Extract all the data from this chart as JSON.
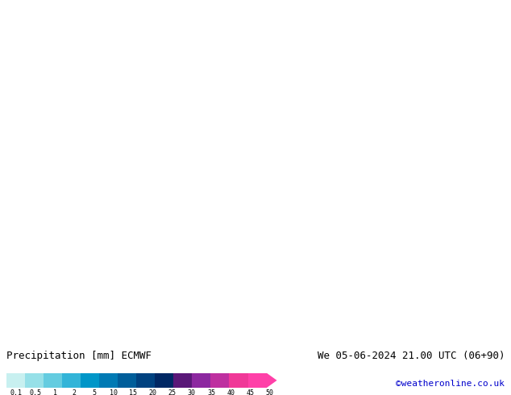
{
  "title_left": "Precipitation [mm] ECMWF",
  "title_right": "We 05-06-2024 21.00 UTC (06+90)",
  "credit": "©weatheronline.co.uk",
  "colorbar_values": [
    "0.1",
    "0.5",
    "1",
    "2",
    "5",
    "10",
    "15",
    "20",
    "25",
    "30",
    "35",
    "40",
    "45",
    "50"
  ],
  "colorbar_colors": [
    "#c8f0f0",
    "#96e0e8",
    "#64cce0",
    "#32b4d8",
    "#0096c8",
    "#007ab4",
    "#005e9a",
    "#004280",
    "#002864",
    "#5a1878",
    "#8c28a0",
    "#be30a0",
    "#f03898",
    "#ff40a8"
  ],
  "land_color": "#b8e898",
  "sea_color": "#c8c8c8",
  "border_color": "#808080",
  "coastline_color": "#808080",
  "red_isobar_color": "#dd0000",
  "blue_isobar_color": "#0000cc",
  "precip_light_blue": "#b0e8f8",
  "precip_mid_blue": "#5ab4e0",
  "precip_dark_blue": "#1464b4",
  "precip_deep_blue": "#003c8c",
  "text_color": "#000000",
  "credit_color": "#0000cc",
  "bottom_bg": "#ffffff",
  "map_extent": [
    -15,
    55,
    22,
    60
  ],
  "isobar_lw": 0.9,
  "font_family": "DejaVu Sans",
  "fontsize_label": 6.5,
  "fontsize_title": 9,
  "fontsize_credit": 8
}
